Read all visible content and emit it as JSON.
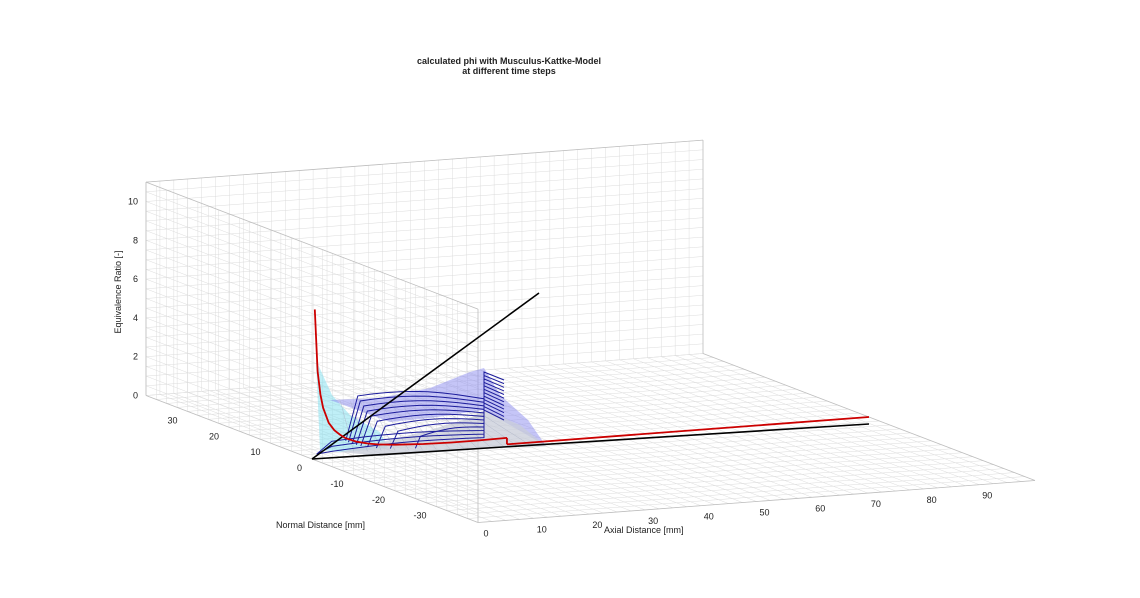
{
  "chart_data": {
    "type": "surface3d",
    "title": [
      "calculated phi with Musculus-Kattke-Model",
      "at different time steps"
    ],
    "xlabel": "Axial Distance [mm]",
    "ylabel": "Normal Distance [mm]",
    "zlabel": "Equivalence Ratio [-]",
    "xlim": [
      0,
      100
    ],
    "ylim": [
      -40,
      40
    ],
    "zlim": [
      0,
      11
    ],
    "xticks": [
      "0",
      "10",
      "20",
      "30",
      "40",
      "50",
      "60",
      "70",
      "80",
      "90"
    ],
    "yticks": [
      "30",
      "20",
      "10",
      "0",
      "-10",
      "-20",
      "-30"
    ],
    "zticks": [
      "0",
      "2",
      "4",
      "6",
      "8",
      "10"
    ],
    "grid": true,
    "series": [
      {
        "role": "centerline-profile",
        "color": "#cc0000",
        "x": [
          0.5,
          1,
          1.5,
          2,
          3,
          4,
          5,
          6,
          8,
          10,
          12,
          15,
          20,
          25,
          30,
          35
        ],
        "z": [
          7.7,
          4.5,
          3.3,
          2.6,
          1.8,
          1.4,
          1.15,
          0.95,
          0.72,
          0.58,
          0.49,
          0.41,
          0.34,
          0.31,
          0.31,
          0.33
        ]
      },
      {
        "role": "spray-axis-extension",
        "color": "#cc0000",
        "x": [
          35,
          100
        ],
        "z": [
          0,
          0
        ]
      },
      {
        "role": "reference-lines",
        "color": "#000000"
      }
    ],
    "colors": {
      "centerline": "#cc0000",
      "contours": "#1c1c9c",
      "surface_front": "#c8ccd8",
      "surface_back": "#8c8cf0",
      "near_nozzle": "#7fe0f0",
      "grid": "#dcdcdc",
      "box_edges": "#bfbfbf"
    }
  }
}
